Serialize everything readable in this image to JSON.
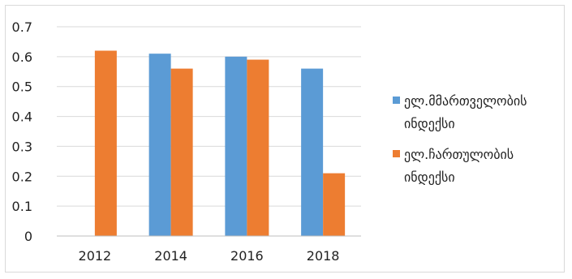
{
  "chart_data": {
    "type": "bar",
    "title": "",
    "xlabel": "",
    "ylabel": "",
    "categories": [
      "2012",
      "2014",
      "2016",
      "2018"
    ],
    "ylim": [
      0,
      0.7
    ],
    "yticks": [
      "0",
      "0.1",
      "0.2",
      "0.3",
      "0.4",
      "0.5",
      "0.6",
      "0.7"
    ],
    "grid": true,
    "legend_position": "right",
    "series": [
      {
        "name": "ელ.მმართველობის ინდექსი",
        "legend_lines": [
          "ელ.მმართველობის",
          "ინდექსი"
        ],
        "color": "#5b9bd5",
        "values": [
          null,
          0.61,
          0.6,
          0.56
        ]
      },
      {
        "name": "ელ.ჩართულობის ინდექსი",
        "legend_lines": [
          "ელ.ჩართულობის",
          "ინდექსი"
        ],
        "color": "#ed7d31",
        "values": [
          0.62,
          0.56,
          0.59,
          0.21
        ]
      }
    ]
  }
}
